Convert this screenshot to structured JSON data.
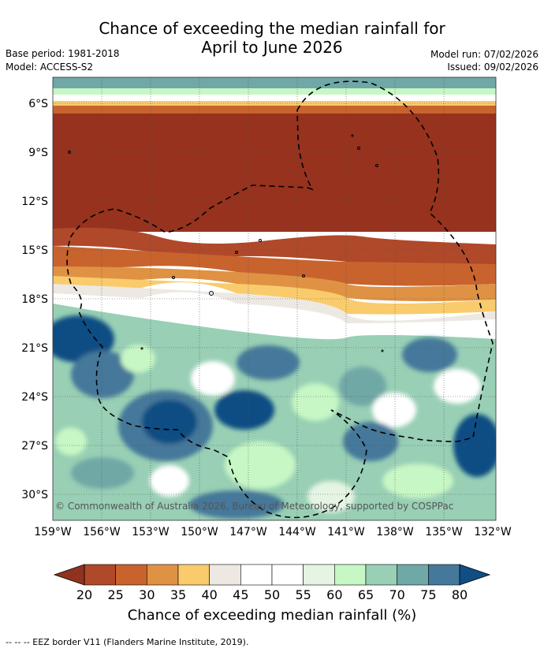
{
  "title": {
    "line1": "Chance of exceeding the median rainfall for",
    "line2": "April to June 2026"
  },
  "meta": {
    "base_period": "Base period: 1981-2018",
    "model": "Model: ACCESS-S2",
    "model_run": "Model run: 07/02/2026",
    "issued": "Issued: 09/02/2026"
  },
  "map": {
    "lat_labels": [
      "6°S",
      "9°S",
      "12°S",
      "15°S",
      "18°S",
      "21°S",
      "24°S",
      "27°S",
      "30°S"
    ],
    "lon_labels": [
      "159°W",
      "156°W",
      "153°W",
      "150°W",
      "147°W",
      "144°W",
      "141°W",
      "138°W",
      "135°W",
      "132°W"
    ],
    "copyright": "© Commonwealth of Australia 2026, Bureau of Meteorology, supported by COSPPac"
  },
  "colorbar": {
    "ticks": [
      "20",
      "25",
      "30",
      "35",
      "40",
      "45",
      "50",
      "55",
      "60",
      "65",
      "70",
      "75",
      "80"
    ],
    "colors": [
      "#b0482a",
      "#c8632e",
      "#df9244",
      "#f9cb6c",
      "#ede9e2",
      "#ffffff",
      "#ffffff",
      "#e6f4e3",
      "#c7f7c4",
      "#98cfb5",
      "#6fa8a6",
      "#45789a"
    ],
    "low_color": "#8f3320",
    "high_color": "#114e83",
    "label": "Chance of exceeding median rainfall (%)"
  },
  "footer": "--  --  -- EEZ border V11 (Flanders Marine Institute, 2019)."
}
